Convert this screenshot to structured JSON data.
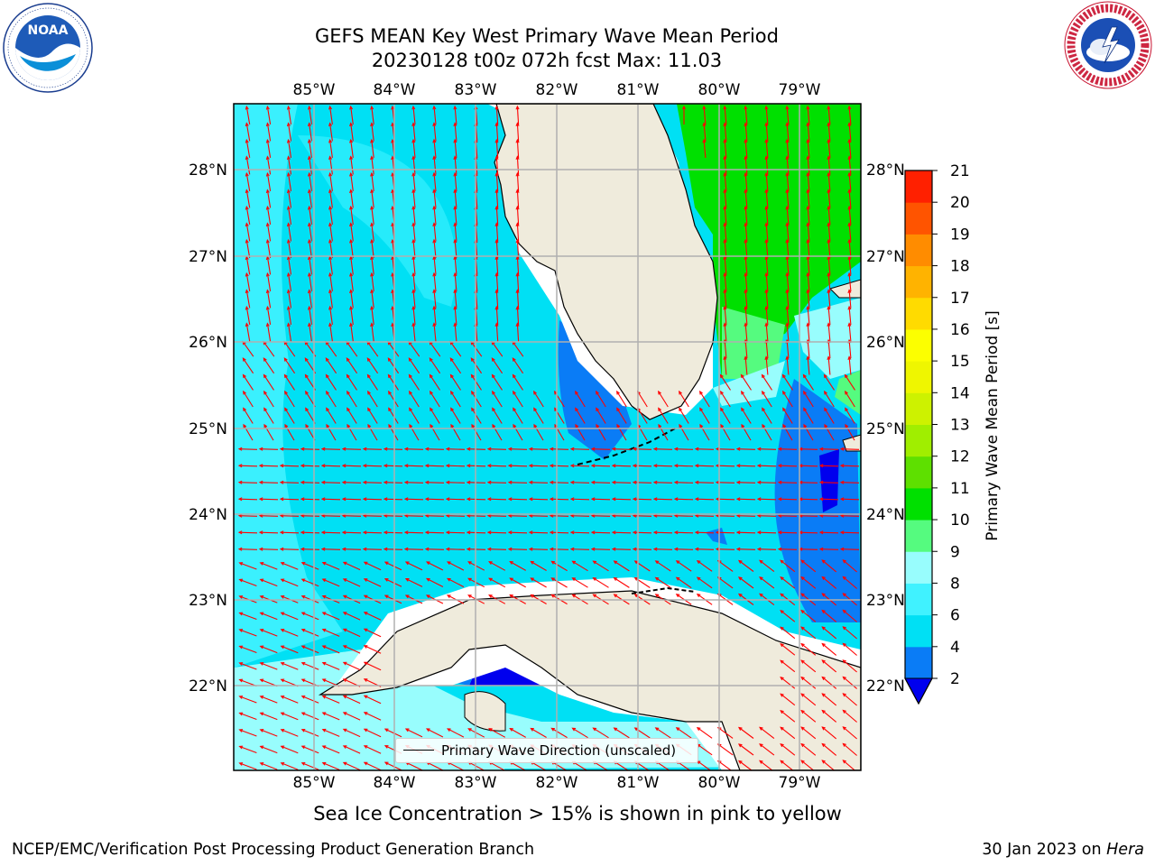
{
  "title_line1": "GEFS MEAN Key West Primary Wave Mean Period",
  "title_line2": "20230128 t00z 072h fcst   Max: 11.03",
  "logos": {
    "left": "NOAA",
    "right": "NATIONAL WEATHER SERVICE"
  },
  "lon_labels": [
    "85°W",
    "84°W",
    "83°W",
    "82°W",
    "81°W",
    "80°W",
    "79°W"
  ],
  "lat_labels": [
    "28°N",
    "27°N",
    "26°N",
    "25°N",
    "24°N",
    "23°N",
    "22°N"
  ],
  "legend_label": "Primary Wave Direction (unscaled)",
  "colorbar": {
    "label": "Primary Wave Mean Period [s]",
    "ticks": [
      "2",
      "4",
      "6",
      "8",
      "9",
      "10",
      "11",
      "12",
      "13",
      "14",
      "15",
      "16",
      "17",
      "18",
      "19",
      "20",
      "21"
    ],
    "colors": [
      "#0a7cf6",
      "#00e0f4",
      "#40f2ff",
      "#98fdfd",
      "#55fb7f",
      "#00e000",
      "#5ee000",
      "#a0ee00",
      "#cdf200",
      "#eff600",
      "#fcff00",
      "#ffdb00",
      "#ffb300",
      "#ff8c00",
      "#ff5400",
      "#ff2000"
    ],
    "extend_color": "#0000ee"
  },
  "note": "Sea Ice Concentration > 15% is shown in pink to yellow",
  "footer_left": "NCEP/EMC/Verification Post Processing Product Generation Branch",
  "footer_right_prefix": "30 Jan 2023 on ",
  "footer_right_machine": "Hera"
}
